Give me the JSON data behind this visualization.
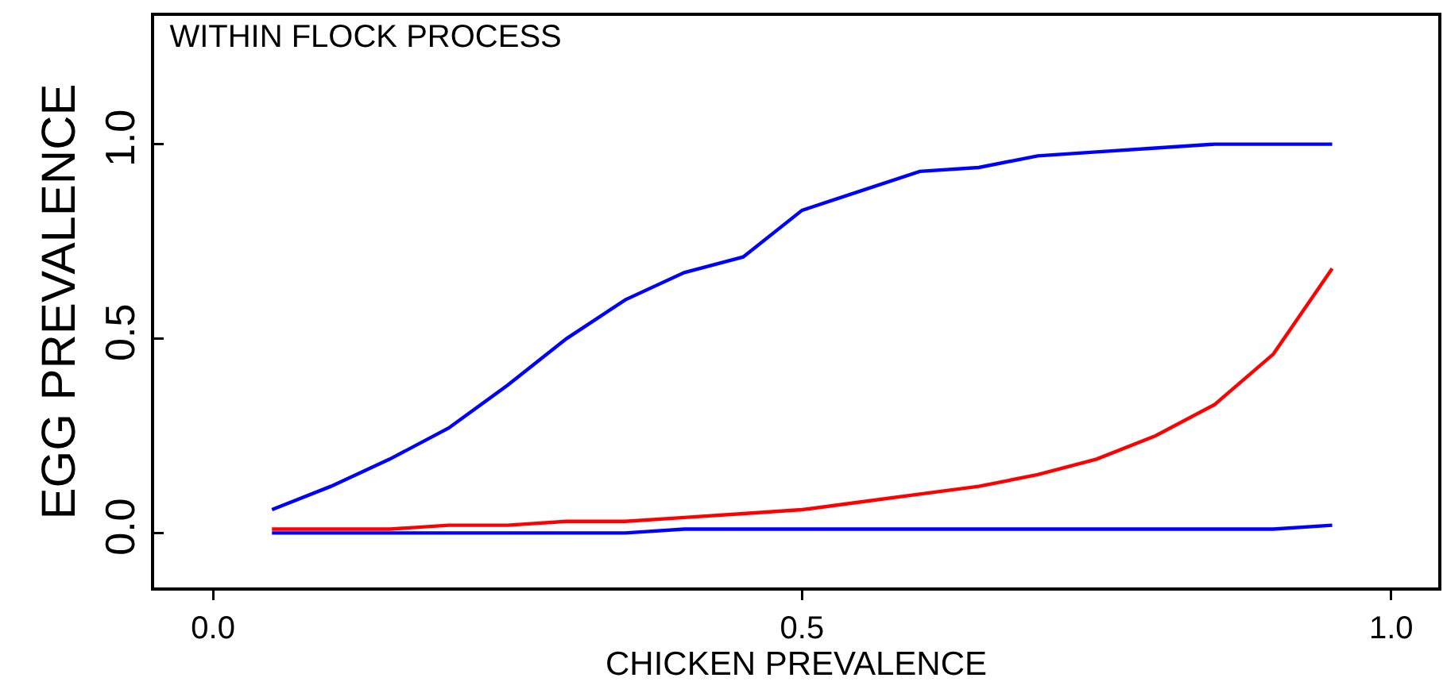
{
  "chart_data": {
    "type": "line",
    "title": "WITHIN FLOCK PROCESS",
    "xlabel": "CHICKEN PREVALENCE",
    "ylabel": "EGG PREVALENCE",
    "x": [
      0.05,
      0.1,
      0.15,
      0.2,
      0.25,
      0.3,
      0.35,
      0.4,
      0.45,
      0.5,
      0.55,
      0.6,
      0.65,
      0.7,
      0.75,
      0.8,
      0.85,
      0.9,
      0.95
    ],
    "series": [
      {
        "color": "#0000ff",
        "values": [
          0.06,
          0.12,
          0.19,
          0.27,
          0.38,
          0.5,
          0.6,
          0.67,
          0.71,
          0.83,
          0.88,
          0.93,
          0.94,
          0.97,
          0.98,
          0.99,
          1.0,
          1.0,
          1.0
        ]
      },
      {
        "color": "#ff0000",
        "values": [
          0.01,
          0.01,
          0.01,
          0.02,
          0.02,
          0.03,
          0.03,
          0.04,
          0.05,
          0.06,
          0.08,
          0.1,
          0.12,
          0.15,
          0.19,
          0.25,
          0.33,
          0.46,
          0.68
        ]
      },
      {
        "color": "#0000ff",
        "values": [
          0.0,
          0.0,
          0.0,
          0.0,
          0.0,
          0.0,
          0.0,
          0.01,
          0.01,
          0.01,
          0.01,
          0.01,
          0.01,
          0.01,
          0.01,
          0.01,
          0.01,
          0.01,
          0.02
        ]
      }
    ],
    "xlim": [
      -0.05,
      1.04
    ],
    "ylim": [
      -0.14,
      1.33
    ],
    "xticks": [
      {
        "value": 0,
        "label": "0.0"
      },
      {
        "value": 0.5,
        "label": "0.5"
      },
      {
        "value": 1,
        "label": "1.0"
      }
    ],
    "yticks": [
      {
        "value": 0,
        "label": "0.0"
      },
      {
        "value": 0.5,
        "label": "0.5"
      },
      {
        "value": 1,
        "label": "1.0"
      }
    ],
    "grid": false,
    "marker": "none",
    "line_style": "solid"
  }
}
